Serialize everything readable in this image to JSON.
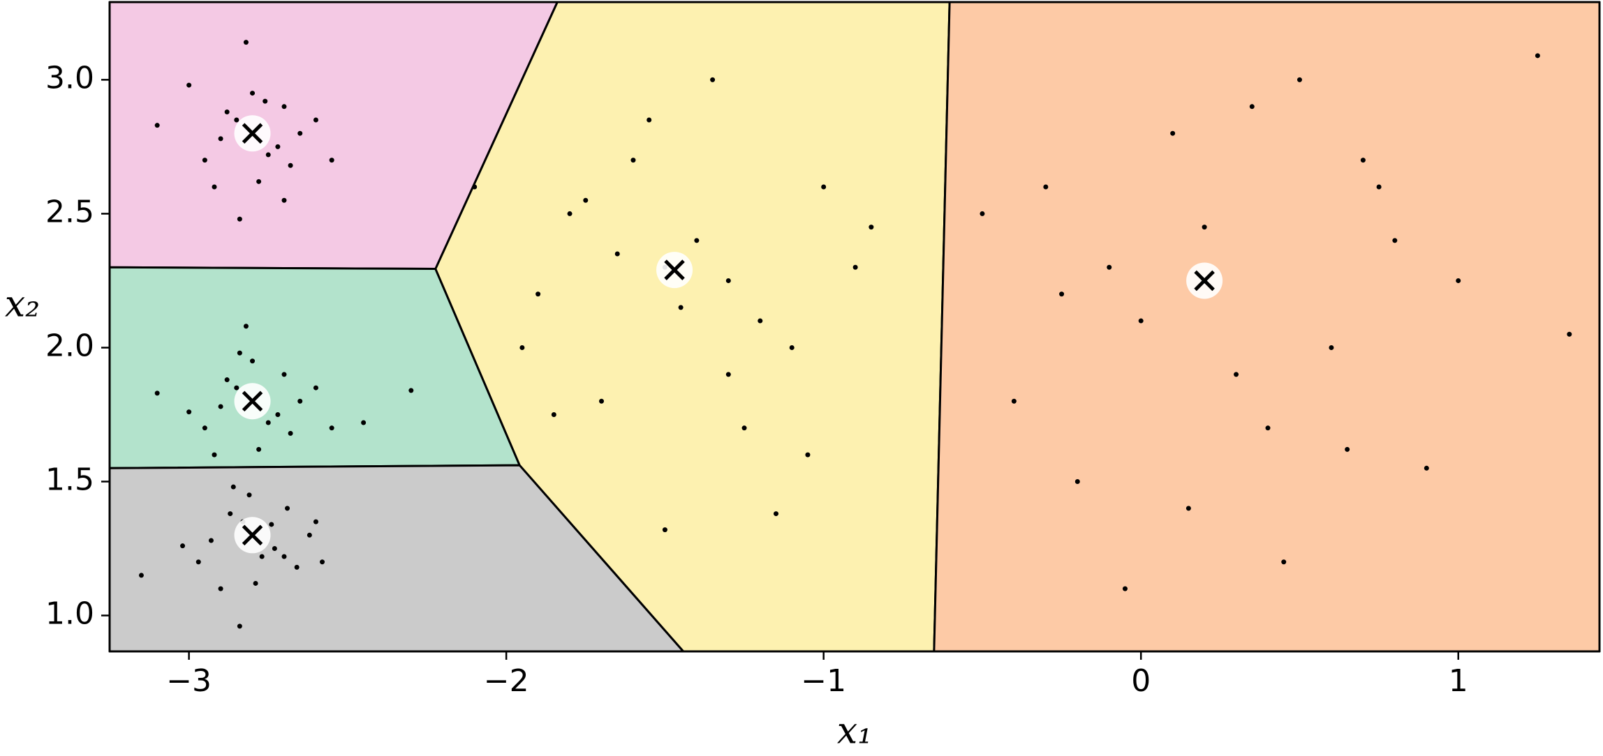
{
  "chart_data": {
    "type": "voronoi-scatter",
    "xlabel": "x₁",
    "ylabel": "x₂",
    "xlim": [
      -3.25,
      1.445
    ],
    "ylim": [
      0.866,
      3.29
    ],
    "xticks": [
      {
        "value": -3,
        "label": "−3"
      },
      {
        "value": -2,
        "label": "−2"
      },
      {
        "value": -1,
        "label": "−1"
      },
      0,
      1
    ],
    "yticks": [
      {
        "value": 1,
        "label": "1.0"
      },
      1.5,
      {
        "value": 2,
        "label": "2.0"
      },
      2.5,
      {
        "value": 3,
        "label": "3.0"
      }
    ],
    "regions": [
      {
        "color": "#f4c9e4",
        "points": [
          [
            -3.25,
            3.29
          ],
          [
            -1.839,
            3.29
          ],
          [
            -2.223,
            2.294
          ],
          [
            -3.25,
            2.3
          ]
        ]
      },
      {
        "color": "#b3e3cc",
        "points": [
          [
            -3.25,
            2.3
          ],
          [
            -2.223,
            2.294
          ],
          [
            -1.958,
            1.561
          ],
          [
            -3.25,
            1.55
          ]
        ]
      },
      {
        "color": "#cbcbcb",
        "points": [
          [
            -3.25,
            1.55
          ],
          [
            -1.958,
            1.561
          ],
          [
            -1.442,
            0.866
          ],
          [
            -3.25,
            0.866
          ]
        ]
      },
      {
        "color": "#fdf1b0",
        "points": [
          [
            -1.839,
            3.29
          ],
          [
            -0.603,
            3.29
          ],
          [
            -0.652,
            0.866
          ],
          [
            -1.442,
            0.866
          ],
          [
            -1.958,
            1.561
          ],
          [
            -2.223,
            2.294
          ]
        ]
      },
      {
        "color": "#fdcaa6",
        "points": [
          [
            -0.603,
            3.29
          ],
          [
            1.445,
            3.29
          ],
          [
            1.445,
            0.866
          ],
          [
            -0.652,
            0.866
          ]
        ]
      }
    ],
    "points": {
      "color": "#000000",
      "x": [
        -2.85,
        -2.75,
        -2.9,
        -2.7,
        -2.8,
        -2.95,
        -2.65,
        -2.78,
        -2.88,
        -2.72,
        -3.1,
        -2.55,
        -2.82,
        -2.68,
        -2.92,
        -2.76,
        -2.84,
        -2.6,
        -3.0,
        -2.7,
        -2.85,
        -2.75,
        -2.9,
        -2.7,
        -2.8,
        -2.95,
        -2.65,
        -2.78,
        -2.88,
        -2.72,
        -3.1,
        -2.55,
        -2.82,
        -2.68,
        -2.92,
        -2.3,
        -2.84,
        -2.6,
        -3.0,
        -2.45,
        -2.83,
        -2.77,
        -2.93,
        -2.69,
        -2.81,
        -2.97,
        -2.62,
        -2.79,
        -2.87,
        -2.73,
        -3.15,
        -2.58,
        -2.84,
        -2.66,
        -2.9,
        -2.74,
        -2.86,
        -2.6,
        -3.02,
        -2.7,
        -1.8,
        -1.2,
        -1.5,
        -1.6,
        -1.3,
        -1.9,
        -1.0,
        -1.4,
        -1.7,
        -1.1,
        -2.1,
        -0.85,
        -1.55,
        -1.25,
        -1.45,
        -1.65,
        -1.35,
        -1.95,
        -1.05,
        -1.5,
        -1.75,
        -1.15,
        -0.9,
        -1.85,
        -1.3,
        -0.3,
        0.6,
        0.1,
        0.4,
        -0.1,
        0.8,
        -0.5,
        0.3,
        0.0,
        0.7,
        -0.2,
        1.0,
        0.5,
        -0.4,
        0.2,
        0.9,
        -0.05,
        0.65,
        1.35,
        0.35,
        -0.25,
        0.75,
        0.15,
        1.25,
        0.45
      ],
      "y": [
        2.85,
        2.72,
        2.78,
        2.9,
        2.95,
        2.7,
        2.8,
        2.62,
        2.88,
        2.75,
        2.83,
        2.7,
        3.14,
        2.68,
        2.6,
        2.92,
        2.48,
        2.85,
        2.98,
        2.55,
        1.85,
        1.72,
        1.78,
        1.9,
        1.95,
        1.7,
        1.8,
        1.62,
        1.88,
        1.75,
        1.83,
        1.7,
        2.08,
        1.68,
        1.6,
        1.84,
        1.98,
        1.85,
        1.76,
        1.72,
        1.35,
        1.22,
        1.28,
        1.4,
        1.45,
        1.2,
        1.3,
        1.12,
        1.38,
        1.25,
        1.15,
        1.2,
        0.96,
        1.18,
        1.1,
        1.34,
        1.48,
        1.35,
        1.26,
        1.22,
        2.5,
        2.1,
        2.3,
        2.7,
        1.9,
        2.2,
        2.6,
        2.4,
        1.8,
        2.0,
        2.6,
        2.45,
        2.85,
        1.7,
        2.15,
        2.35,
        3.0,
        2.0,
        1.6,
        1.32,
        2.55,
        1.38,
        2.3,
        1.75,
        2.25,
        2.6,
        2.0,
        2.8,
        1.7,
        2.3,
        2.4,
        2.5,
        1.9,
        2.1,
        2.7,
        1.5,
        2.25,
        3.0,
        1.8,
        2.45,
        1.55,
        1.1,
        1.62,
        2.05,
        2.9,
        2.2,
        2.6,
        1.4,
        3.09,
        1.2
      ]
    },
    "centroids": {
      "x": [
        -2.8,
        -2.8,
        -2.8,
        -1.47,
        0.2
      ],
      "y": [
        2.8,
        1.8,
        1.3,
        2.29,
        2.25
      ]
    }
  }
}
